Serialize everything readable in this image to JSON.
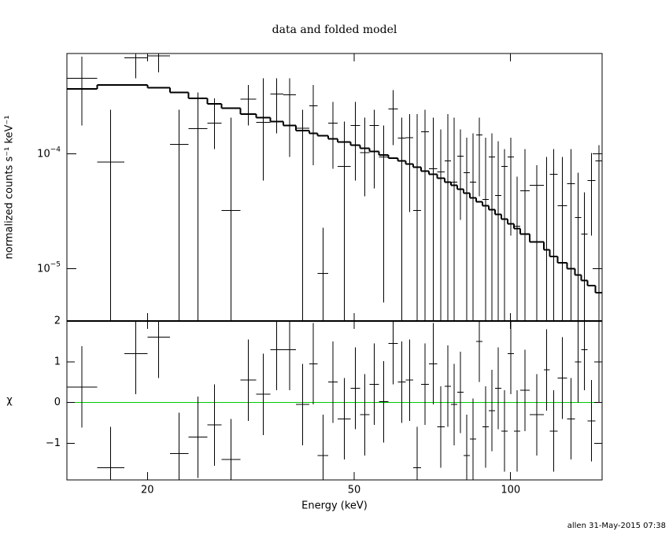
{
  "chart_data": {
    "type": "spectrum",
    "title": "data and folded model",
    "x_label": "Energy (keV)",
    "footer": "allen 31-May-2015 07:38",
    "log_x": true,
    "xlim": [
      14,
      150
    ],
    "xticks": [
      20,
      50,
      100
    ],
    "bins": [
      14.0,
      16.0,
      18.05,
      20.0,
      22.1,
      24.0,
      26.1,
      27.8,
      30.2,
      32.4,
      34.5,
      36.5,
      38.6,
      41.0,
      42.5,
      44.6,
      46.5,
      49.2,
      51.3,
      53.5,
      55.8,
      58.2,
      60.7,
      62.8,
      65.0,
      67.3,
      69.7,
      72.2,
      74.7,
      76.8,
      79.0,
      81.2,
      83.5,
      85.9,
      88.3,
      90.8,
      93.3,
      96.0,
      98.7,
      101.5,
      104.3,
      108.8,
      115.8,
      119.0,
      123.2,
      128.5,
      133.0,
      136.8,
      140.7,
      145.7,
      150.0
    ],
    "upper": {
      "y_label": "normalized counts s⁻¹ keV⁻¹",
      "log_y": true,
      "ylim": [
        3.5e-06,
        0.00075
      ],
      "yticks": [
        {
          "value": 0.0001,
          "label": "10",
          "exponent": "−4"
        },
        {
          "value": 1e-05,
          "label": "10",
          "exponent": "−5"
        }
      ],
      "color": "#000000",
      "data": {
        "values": [
          0.000455,
          8.5e-05,
          0.000686,
          0.000718,
          0.000121,
          0.000166,
          0.000185,
          3.21e-05,
          0.000301,
          0.000188,
          0.000332,
          0.000327,
          0.000168,
          0.000262,
          9.1e-06,
          0.000185,
          7.77e-05,
          0.000177,
          0.000103,
          0.000177,
          9.4e-05,
          0.000246,
          0.000137,
          0.000139,
          3.21e-05,
          0.000156,
          7.41e-05,
          6.95e-05,
          8.67e-05,
          5.67e-05,
          9.53e-05,
          6.85e-05,
          5.67e-05,
          0.000146,
          4.01e-05,
          9.4e-05,
          4.34e-05,
          7.77e-05,
          9.4e-05,
          2.34e-05,
          4.76e-05,
          5.32e-05,
          1.46e-05,
          6.64e-05,
          3.53e-05,
          5.5e-05,
          2.79e-05,
          2e-05,
          5.85e-05,
          8.67e-05
        ],
        "lows": [
          0.000177,
          2e-06,
          0.000455,
          0.000515,
          2e-06,
          2e-06,
          0.00011,
          2e-06,
          0.000177,
          5.85e-05,
          0.000151,
          9.4e-05,
          2e-06,
          8e-05,
          2e-06,
          7.41e-05,
          2e-06,
          5.85e-05,
          4.27e-05,
          5e-05,
          5.07e-06,
          0.000119,
          2e-06,
          3.11e-05,
          2e-06,
          2e-06,
          2e-06,
          2e-06,
          2e-06,
          2e-06,
          2.66e-05,
          2e-06,
          2e-06,
          4.27e-05,
          2e-06,
          2e-06,
          2e-06,
          2e-06,
          1.94e-05,
          2e-06,
          2e-06,
          2e-06,
          2e-06,
          2e-06,
          2e-06,
          2e-06,
          2e-06,
          2e-06,
          1.94e-05,
          2e-06
        ],
        "highs": [
          0.000706,
          0.000242,
          0.0009,
          0.0009,
          0.000242,
          0.000342,
          0.000306,
          0.000207,
          0.0004,
          0.000455,
          0.000455,
          0.000455,
          0.000242,
          0.0004,
          2.27e-05,
          0.000283,
          0.000191,
          0.000283,
          0.000207,
          0.000242,
          0.000177,
          0.000359,
          0.000207,
          0.000223,
          0.000223,
          0.000242,
          0.000207,
          0.000163,
          0.000223,
          0.000207,
          0.000163,
          0.000139,
          0.000151,
          0.000207,
          0.000139,
          0.000151,
          0.000129,
          0.00011,
          0.000139,
          6.33e-05,
          0.00011,
          8e-05,
          9.4e-05,
          0.00011,
          9.4e-05,
          0.00011,
          6.85e-05,
          4.62e-05,
          0.000102,
          0.000119
        ]
      },
      "model": {
        "color": "#000000",
        "values": [
          0.00037,
          0.0004,
          0.0004,
          0.000376,
          0.000342,
          0.000306,
          0.000274,
          0.00025,
          0.000223,
          0.000207,
          0.000191,
          0.000177,
          0.00016,
          0.000151,
          0.000144,
          0.000135,
          0.000127,
          0.000119,
          0.000112,
          0.000105,
          9.8e-05,
          9.2e-05,
          8.67e-05,
          8.15e-05,
          7.65e-05,
          7.07e-05,
          6.64e-05,
          6.13e-05,
          5.67e-05,
          5.32e-05,
          4.92e-05,
          4.55e-05,
          4.14e-05,
          3.82e-05,
          3.53e-05,
          3.27e-05,
          2.97e-05,
          2.7e-05,
          2.46e-05,
          2.23e-05,
          2e-05,
          1.71e-05,
          1.46e-05,
          1.28e-05,
          1.13e-05,
          1e-05,
          8.8e-06,
          7.9e-06,
          7.1e-06,
          6.2e-06
        ]
      }
    },
    "lower": {
      "y_label": "χ",
      "ylim": [
        -1.9,
        2
      ],
      "yticks": [
        2,
        1,
        0,
        {
          "value": -1,
          "label": "−1"
        }
      ],
      "color": "#000000",
      "zero_line_color": "#00cc00",
      "values": [
        0.38,
        -1.6,
        1.2,
        1.6,
        -1.25,
        -0.85,
        -0.55,
        -1.4,
        0.55,
        0.2,
        1.3,
        1.3,
        -0.05,
        0.95,
        -1.3,
        0.5,
        -0.4,
        0.35,
        -0.3,
        0.45,
        0.02,
        1.45,
        0.5,
        0.55,
        -1.6,
        0.45,
        0.95,
        -0.6,
        0.4,
        -0.05,
        0.25,
        -1.3,
        -0.9,
        1.5,
        -0.6,
        -0.2,
        0.35,
        -0.7,
        1.2,
        -0.7,
        0.3,
        -0.3,
        0.8,
        -0.7,
        0.6,
        -0.4,
        1.0,
        1.3,
        -0.45,
        1.0
      ],
      "errors": [
        1,
        1,
        1,
        1,
        1,
        1,
        1,
        1,
        1,
        1,
        1,
        1,
        1,
        1,
        1,
        1,
        1,
        1,
        1,
        1,
        1,
        1,
        1,
        1,
        1,
        1,
        1,
        1,
        1,
        1,
        1,
        1,
        1,
        1,
        1,
        1,
        1,
        1,
        1,
        1,
        1,
        1,
        1,
        1,
        1,
        1,
        1,
        1,
        1,
        1
      ]
    }
  }
}
